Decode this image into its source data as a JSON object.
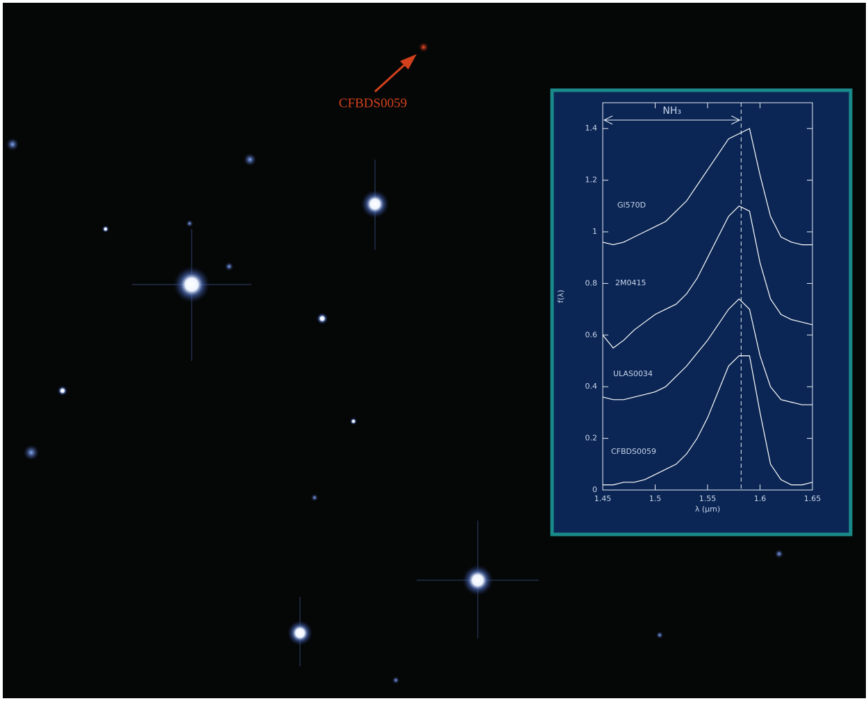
{
  "image_label": "CFBDS0059",
  "chart_data": {
    "type": "line",
    "xlabel": "λ (μm)",
    "ylabel": "f(λ)",
    "annotation": "NH₃",
    "vline": 1.582,
    "x": [
      1.45,
      1.46,
      1.47,
      1.48,
      1.49,
      1.5,
      1.51,
      1.52,
      1.53,
      1.54,
      1.55,
      1.56,
      1.57,
      1.58,
      1.59,
      1.6,
      1.61,
      1.62,
      1.63,
      1.64,
      1.65
    ],
    "xlim": [
      1.45,
      1.65
    ],
    "xticks": [
      1.45,
      1.5,
      1.55,
      1.6,
      1.65
    ],
    "ylim": [
      0,
      1.5
    ],
    "yticks": [
      0,
      0.2,
      0.4,
      0.6,
      0.8,
      1,
      1.2,
      1.4
    ],
    "series": [
      {
        "name": "Gl570D",
        "color": "#ffffff",
        "values": [
          0.96,
          0.95,
          0.96,
          0.98,
          1.0,
          1.02,
          1.04,
          1.08,
          1.12,
          1.18,
          1.24,
          1.3,
          1.36,
          1.38,
          1.4,
          1.22,
          1.06,
          0.98,
          0.96,
          0.95,
          0.95
        ]
      },
      {
        "name": "2M0415",
        "color": "#ffffff",
        "values": [
          0.6,
          0.55,
          0.58,
          0.62,
          0.65,
          0.68,
          0.7,
          0.72,
          0.76,
          0.82,
          0.9,
          0.98,
          1.06,
          1.1,
          1.08,
          0.88,
          0.74,
          0.68,
          0.66,
          0.65,
          0.64
        ]
      },
      {
        "name": "ULAS0034",
        "color": "#ffffff",
        "values": [
          0.36,
          0.35,
          0.35,
          0.36,
          0.37,
          0.38,
          0.4,
          0.44,
          0.48,
          0.53,
          0.58,
          0.64,
          0.7,
          0.74,
          0.7,
          0.52,
          0.4,
          0.35,
          0.34,
          0.33,
          0.33
        ]
      },
      {
        "name": "CFBDS0059",
        "color": "#ffffff",
        "values": [
          0.02,
          0.02,
          0.03,
          0.03,
          0.04,
          0.06,
          0.08,
          0.1,
          0.14,
          0.2,
          0.28,
          0.38,
          0.48,
          0.52,
          0.52,
          0.3,
          0.1,
          0.04,
          0.02,
          0.02,
          0.03
        ]
      }
    ]
  }
}
